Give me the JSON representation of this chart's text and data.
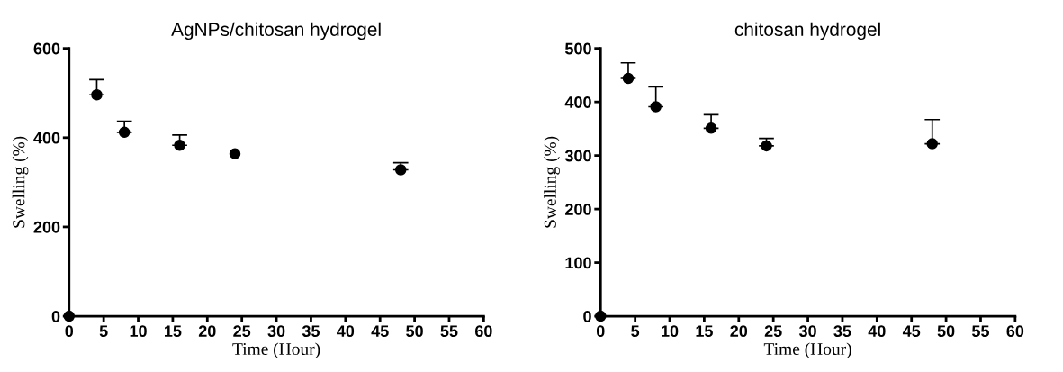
{
  "chart_data": [
    {
      "type": "scatter",
      "title": "AgNPs/chitosan hydrogel",
      "xlabel": "Time (Hour)",
      "ylabel": "Swelling (%)",
      "x": [
        0,
        4,
        8,
        16,
        24,
        48
      ],
      "series": [
        {
          "color": "#000000",
          "values": [
            0,
            496,
            412,
            383,
            364,
            328
          ],
          "errors": [
            null,
            [
              496,
              530
            ],
            [
              412,
              437
            ],
            [
              383,
              406
            ],
            null,
            [
              328,
              344
            ]
          ]
        }
      ],
      "marker": "circle",
      "xlim": [
        0,
        60
      ],
      "xticks": [
        0,
        5,
        10,
        15,
        20,
        25,
        30,
        35,
        40,
        45,
        50,
        55,
        60
      ],
      "ylim": [
        0,
        600
      ],
      "yticks": [
        0,
        200,
        400,
        600
      ],
      "grid": false,
      "legend": false
    },
    {
      "type": "scatter",
      "title": "chitosan hydrogel",
      "xlabel": "Time (Hour)",
      "ylabel": "Swelling (%)",
      "x": [
        0,
        4,
        8,
        16,
        24,
        48
      ],
      "series": [
        {
          "color": "#000000",
          "values": [
            0,
            444,
            391,
            351,
            318,
            322
          ],
          "errors": [
            null,
            [
              444,
              473
            ],
            [
              391,
              428
            ],
            [
              351,
              376
            ],
            [
              318,
              332
            ],
            [
              322,
              367
            ]
          ]
        }
      ],
      "marker": "circle",
      "xlim": [
        0,
        60
      ],
      "xticks": [
        0,
        5,
        10,
        15,
        20,
        25,
        30,
        35,
        40,
        45,
        50,
        55,
        60
      ],
      "ylim": [
        0,
        500
      ],
      "yticks": [
        0,
        100,
        200,
        300,
        400,
        500
      ],
      "grid": false,
      "legend": false
    }
  ]
}
